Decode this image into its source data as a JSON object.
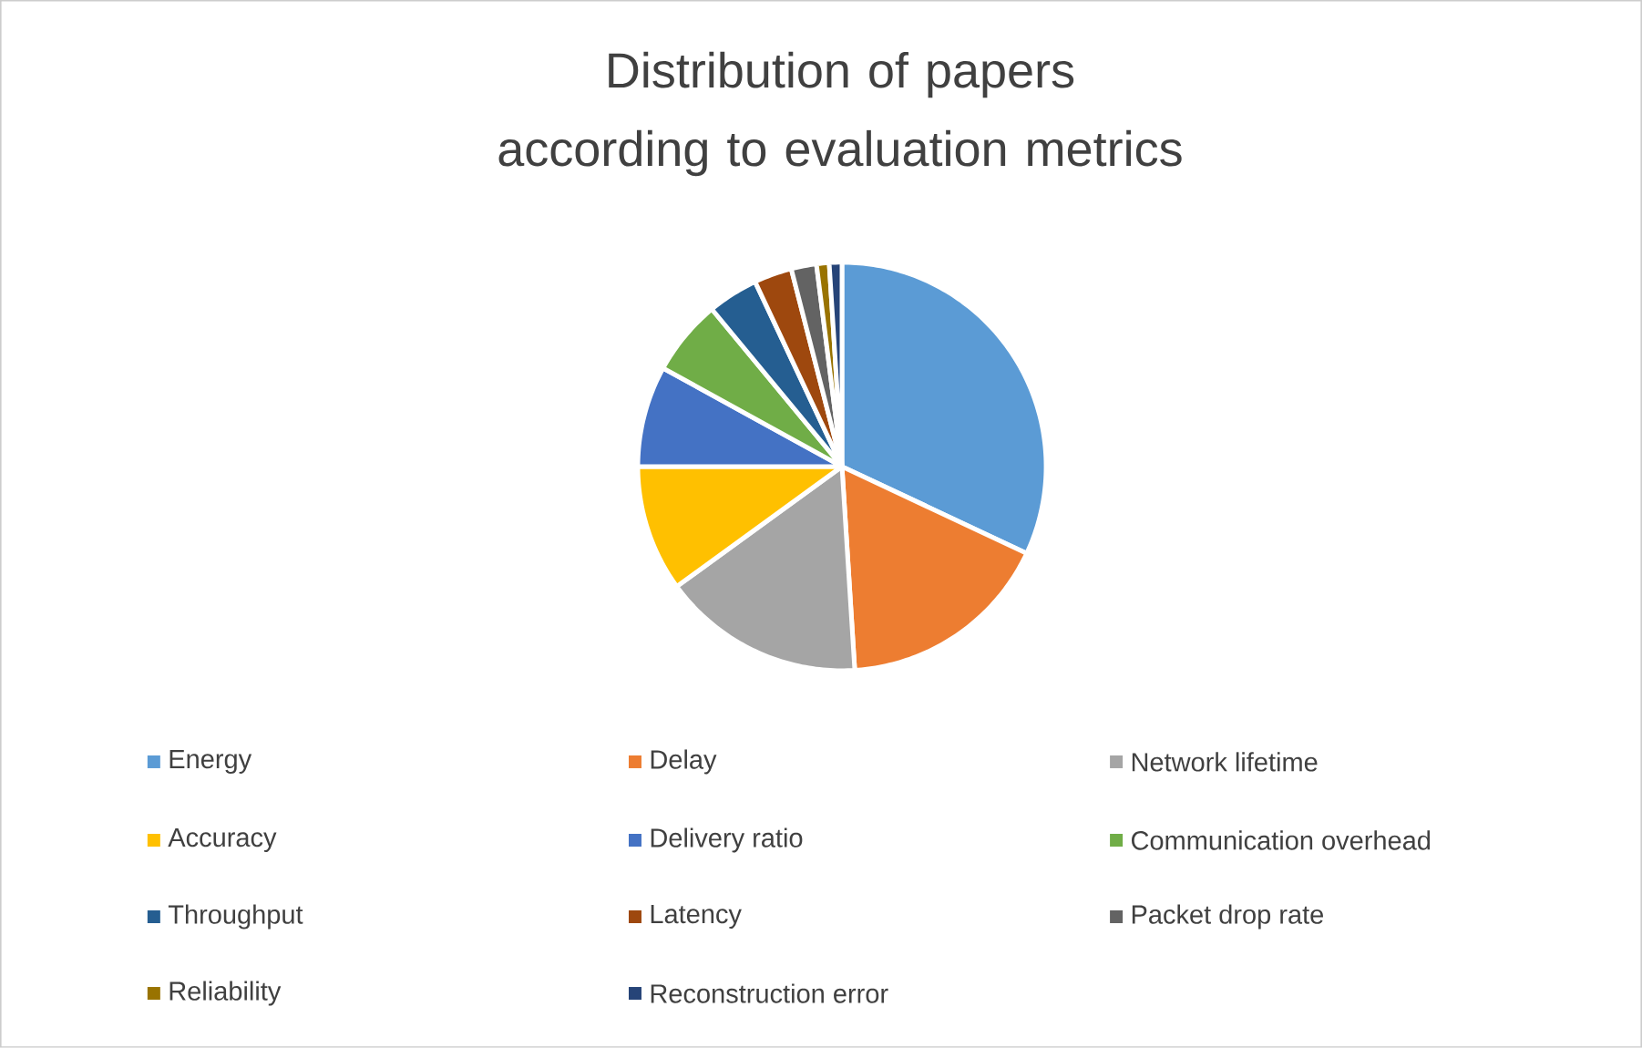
{
  "chart_data": {
    "type": "pie",
    "title": "Distribution of papers according to evaluation metrics",
    "categories": [
      "Energy",
      "Delay",
      "Network lifetime",
      "Accuracy",
      "Delivery ratio",
      "Communication overhead",
      "Throughput",
      "Latency",
      "Packet drop rate",
      "Reliability",
      "Reconstruction error"
    ],
    "values": [
      32,
      17,
      16,
      10,
      8,
      6,
      4,
      3,
      2,
      1,
      1
    ],
    "colors": [
      "#5b9bd5",
      "#ed7d31",
      "#a5a5a5",
      "#ffc000",
      "#4472c4",
      "#70ad47",
      "#255e91",
      "#9e480e",
      "#636363",
      "#997300",
      "#264478"
    ],
    "legend": "bottom"
  }
}
